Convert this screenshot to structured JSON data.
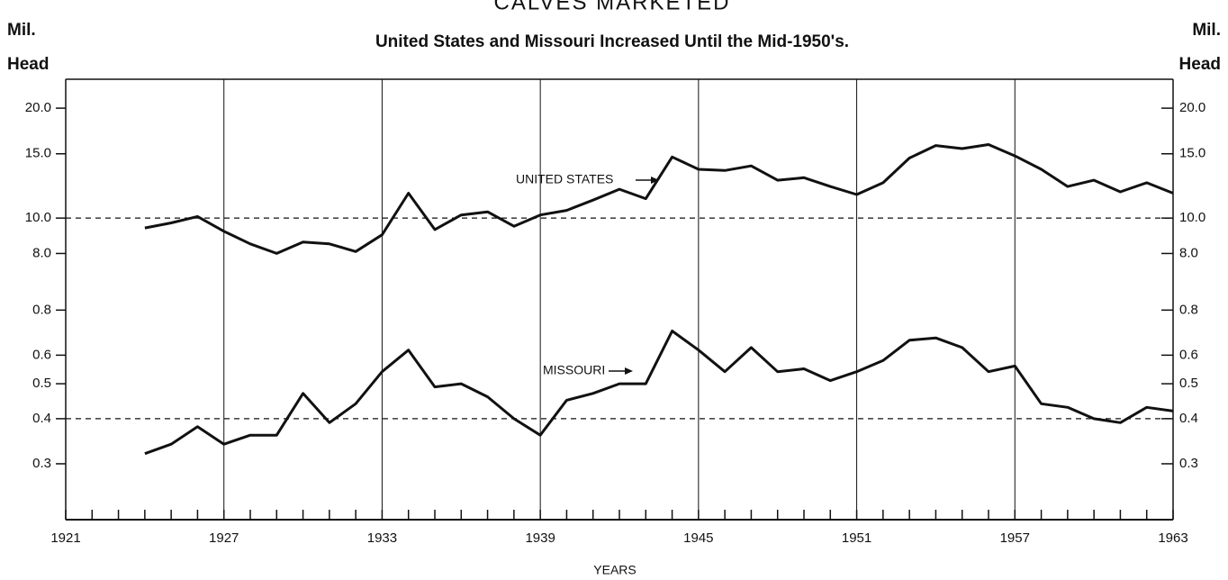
{
  "chart_data": [
    {
      "type": "line",
      "title": "CALVES MARKETED",
      "subtitle": "United States and Missouri Increased Until the Mid-1950's.",
      "ylabel": "Mil. Head",
      "y2label": "Mil. Head",
      "log_scale": true,
      "x": [
        1924,
        1925,
        1926,
        1927,
        1928,
        1929,
        1930,
        1931,
        1932,
        1933,
        1934,
        1935,
        1936,
        1937,
        1938,
        1939,
        1940,
        1941,
        1942,
        1943,
        1944,
        1945,
        1946,
        1947,
        1948,
        1949,
        1950,
        1951,
        1952,
        1953,
        1954,
        1955,
        1956,
        1957,
        1958,
        1959,
        1960,
        1961,
        1962,
        1963
      ],
      "series": [
        {
          "name": "UNITED STATES",
          "color": "#111111",
          "values": [
            9.4,
            9.7,
            10.1,
            9.2,
            8.5,
            8.0,
            8.6,
            8.5,
            8.1,
            9.0,
            11.7,
            9.3,
            10.2,
            10.4,
            9.5,
            10.2,
            10.5,
            11.2,
            12.0,
            11.3,
            14.7,
            13.6,
            13.5,
            13.9,
            12.7,
            12.9,
            12.2,
            11.6,
            12.5,
            14.6,
            15.8,
            15.5,
            15.9,
            14.8,
            13.6,
            12.2,
            12.7,
            11.8,
            12.5,
            11.7
          ]
        }
      ],
      "reference_line": 10,
      "xlim": [
        1921,
        1963
      ],
      "ylim": [
        7.2,
        24
      ],
      "yticks": [
        {
          "value": 8,
          "label": "8.0"
        },
        {
          "value": 10,
          "label": "10.0"
        },
        {
          "value": 15,
          "label": "15.0"
        },
        {
          "value": 20,
          "label": "20.0"
        }
      ]
    },
    {
      "type": "line",
      "xlabel": "YEARS",
      "log_scale": true,
      "x": [
        1924,
        1925,
        1926,
        1927,
        1928,
        1929,
        1930,
        1931,
        1932,
        1933,
        1934,
        1935,
        1936,
        1937,
        1938,
        1939,
        1940,
        1941,
        1942,
        1943,
        1944,
        1945,
        1946,
        1947,
        1948,
        1949,
        1950,
        1951,
        1952,
        1953,
        1954,
        1955,
        1956,
        1957,
        1958,
        1959,
        1960,
        1961,
        1962,
        1963
      ],
      "series": [
        {
          "name": "MISSOURI",
          "color": "#111111",
          "values": [
            0.32,
            0.34,
            0.38,
            0.34,
            0.36,
            0.36,
            0.47,
            0.39,
            0.44,
            0.54,
            0.62,
            0.49,
            0.5,
            0.46,
            0.4,
            0.36,
            0.45,
            0.47,
            0.5,
            0.5,
            0.7,
            0.62,
            0.54,
            0.63,
            0.54,
            0.55,
            0.51,
            0.54,
            0.58,
            0.66,
            0.67,
            0.63,
            0.54,
            0.56,
            0.44,
            0.43,
            0.4,
            0.39,
            0.43,
            0.42
          ]
        }
      ],
      "reference_line": 0.4,
      "xlim": [
        1921,
        1963
      ],
      "xticks": [
        1921,
        1927,
        1933,
        1939,
        1945,
        1951,
        1957,
        1963
      ],
      "ylim": [
        0.21,
        0.92
      ],
      "yticks": [
        0.3,
        0.4,
        0.5,
        0.6,
        0.8
      ]
    }
  ]
}
